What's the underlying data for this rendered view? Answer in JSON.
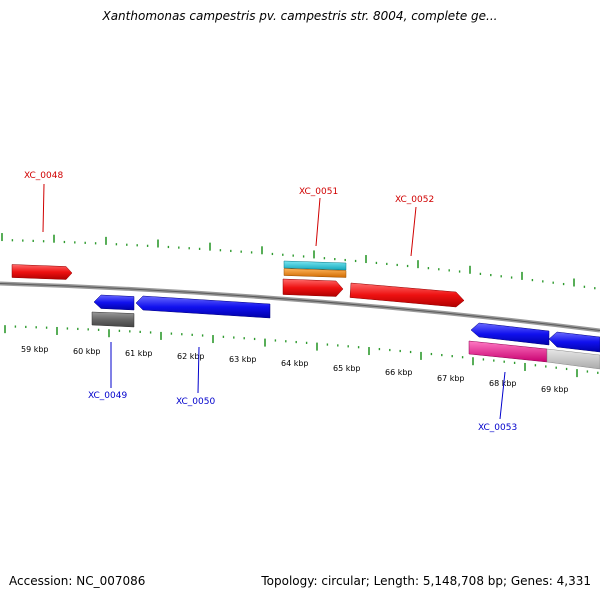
{
  "title": "Xanthomonas campestris pv. campestris str. 8004, complete ge...",
  "footer": {
    "accession": "Accession: NC_007086",
    "summary": "Topology: circular; Length: 5,148,708 bp; Genes: 4,331"
  },
  "colors": {
    "backbone": "#8a8a8a",
    "ticks": "#2e9a2e",
    "forward_label": "#d00000",
    "reverse_label": "#0000cc",
    "cds_forward": "#ee1111",
    "cds_reverse": "#1111ee",
    "other_gray": "#666666",
    "cyan": "#22c4d8",
    "orange": "#f08a10",
    "pink": "#ee2299",
    "light_gray": "#c8c8c8"
  },
  "kbp_labels": [
    "59 kbp",
    "60 kbp",
    "61 kbp",
    "62 kbp",
    "63 kbp",
    "64 kbp",
    "65 kbp",
    "66 kbp",
    "67 kbp",
    "68 kbp",
    "69 kbp"
  ],
  "gene_labels": {
    "XC_0048": "XC_0048",
    "XC_0049": "XC_0049",
    "XC_0050": "XC_0050",
    "XC_0051": "XC_0051",
    "XC_0052": "XC_0052",
    "XC_0053": "XC_0053"
  }
}
